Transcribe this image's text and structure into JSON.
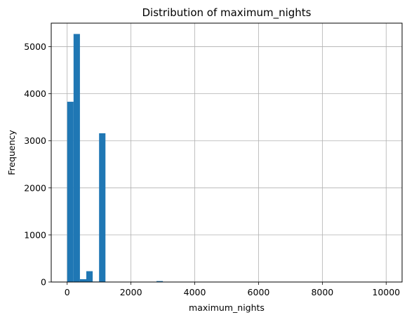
{
  "chart_data": {
    "type": "bar",
    "title": "Distribution of maximum_nights",
    "xlabel": "maximum_nights",
    "ylabel": "Frequency",
    "xlim": [
      -500,
      10500
    ],
    "ylim": [
      0,
      5500
    ],
    "grid": true,
    "bar_color": "#1f77b4",
    "bin_width": 200,
    "x_ticks": [
      0,
      2000,
      4000,
      6000,
      8000,
      10000
    ],
    "y_ticks": [
      0,
      1000,
      2000,
      3000,
      4000,
      5000
    ],
    "bins": [
      {
        "x0": 0,
        "x1": 200,
        "count": 3830
      },
      {
        "x0": 200,
        "x1": 400,
        "count": 5270
      },
      {
        "x0": 400,
        "x1": 600,
        "count": 60
      },
      {
        "x0": 600,
        "x1": 800,
        "count": 230
      },
      {
        "x0": 800,
        "x1": 1000,
        "count": 10
      },
      {
        "x0": 1000,
        "x1": 1200,
        "count": 3160
      },
      {
        "x0": 1200,
        "x1": 1400,
        "count": 2
      },
      {
        "x0": 2800,
        "x1": 3000,
        "count": 20
      },
      {
        "x0": 3000,
        "x1": 3200,
        "count": 5
      },
      {
        "x0": 9800,
        "x1": 10000,
        "count": 2
      }
    ]
  }
}
